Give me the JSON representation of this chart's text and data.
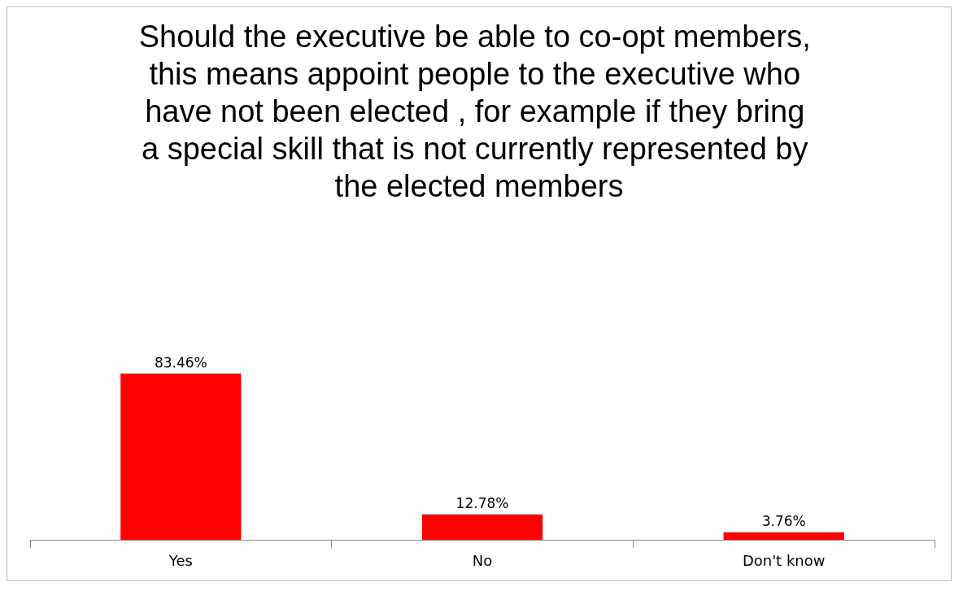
{
  "chart_data": {
    "type": "bar",
    "title": "Should the executive be able to co-opt members, this means appoint people to the executive who have not been elected , for example if they bring a special skill that is not currently represented by the elected members",
    "categories": [
      "Yes",
      "No",
      "Don't know"
    ],
    "values": [
      83.46,
      12.78,
      3.76
    ],
    "value_labels": [
      "83.46%",
      "12.78%",
      "3.76%"
    ],
    "color": "#ff0000"
  }
}
